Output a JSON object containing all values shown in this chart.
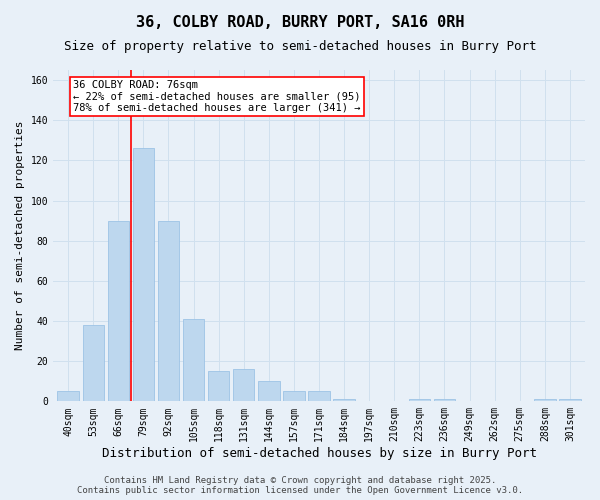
{
  "title1": "36, COLBY ROAD, BURRY PORT, SA16 0RH",
  "title2": "Size of property relative to semi-detached houses in Burry Port",
  "xlabel": "Distribution of semi-detached houses by size in Burry Port",
  "ylabel": "Number of semi-detached properties",
  "categories": [
    "40sqm",
    "53sqm",
    "66sqm",
    "79sqm",
    "92sqm",
    "105sqm",
    "118sqm",
    "131sqm",
    "144sqm",
    "157sqm",
    "171sqm",
    "184sqm",
    "197sqm",
    "210sqm",
    "223sqm",
    "236sqm",
    "249sqm",
    "262sqm",
    "275sqm",
    "288sqm",
    "301sqm"
  ],
  "values": [
    5,
    38,
    90,
    126,
    90,
    41,
    15,
    16,
    10,
    5,
    5,
    1,
    0,
    0,
    1,
    1,
    0,
    0,
    0,
    1,
    1
  ],
  "bar_color": "#BDD7EE",
  "bar_edge_color": "#9DC3E6",
  "grid_color": "#D0E0EE",
  "vline_color": "red",
  "vline_x_index": 3,
  "annotation_text": "36 COLBY ROAD: 76sqm\n← 22% of semi-detached houses are smaller (95)\n78% of semi-detached houses are larger (341) →",
  "annotation_box_color": "white",
  "annotation_box_edge": "red",
  "ylim": [
    0,
    165
  ],
  "yticks": [
    0,
    20,
    40,
    60,
    80,
    100,
    120,
    140,
    160
  ],
  "footnote": "Contains HM Land Registry data © Crown copyright and database right 2025.\nContains public sector information licensed under the Open Government Licence v3.0.",
  "background_color": "#E8F0F8",
  "title1_fontsize": 11,
  "title2_fontsize": 9,
  "xlabel_fontsize": 9,
  "ylabel_fontsize": 8,
  "tick_fontsize": 7,
  "annotation_fontsize": 7.5,
  "footnote_fontsize": 6.5
}
